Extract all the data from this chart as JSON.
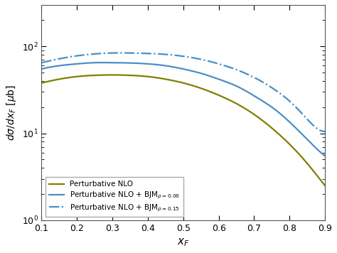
{
  "title": "",
  "xlabel": "$x_F$",
  "ylabel": "$d\\sigma/dx_F$ [$\\mu$b]",
  "xlim": [
    0.1,
    0.9
  ],
  "ylim": [
    1.0,
    300
  ],
  "xF": [
    0.1,
    0.15,
    0.2,
    0.25,
    0.3,
    0.35,
    0.4,
    0.45,
    0.5,
    0.55,
    0.6,
    0.65,
    0.7,
    0.75,
    0.8,
    0.85,
    0.9
  ],
  "nlo_values": [
    38,
    42,
    45,
    46.5,
    47,
    46.5,
    45,
    42,
    38,
    33,
    27.5,
    22,
    16.5,
    11.5,
    7.5,
    4.5,
    2.5
  ],
  "bjm006_values": [
    55,
    60,
    63,
    65,
    65,
    64.5,
    63,
    60,
    55,
    49,
    42,
    35,
    27,
    20,
    13.5,
    8.5,
    5.5
  ],
  "bjm015_values": [
    65,
    72,
    78,
    82,
    84,
    84,
    83,
    81,
    77,
    71,
    63,
    54,
    44,
    33.5,
    23.5,
    14.5,
    10.5
  ],
  "color_nlo": "#7f7f00",
  "color_bjm006": "#4a8fc4",
  "color_bjm015": "#4a8fc4",
  "label_nlo": "Perturbative NLO",
  "label_bjm006": "Perturbative NLO + BJM$_{\\rho=0.06}$",
  "label_bjm015": "Perturbative NLO + BJM$_{\\rho=0.15}$",
  "bg_color": "#ffffff",
  "legend_loc": "lower left",
  "legend_fontsize": 7.5,
  "tick_labelsize": 9,
  "xlabel_fontsize": 11,
  "ylabel_fontsize": 10
}
